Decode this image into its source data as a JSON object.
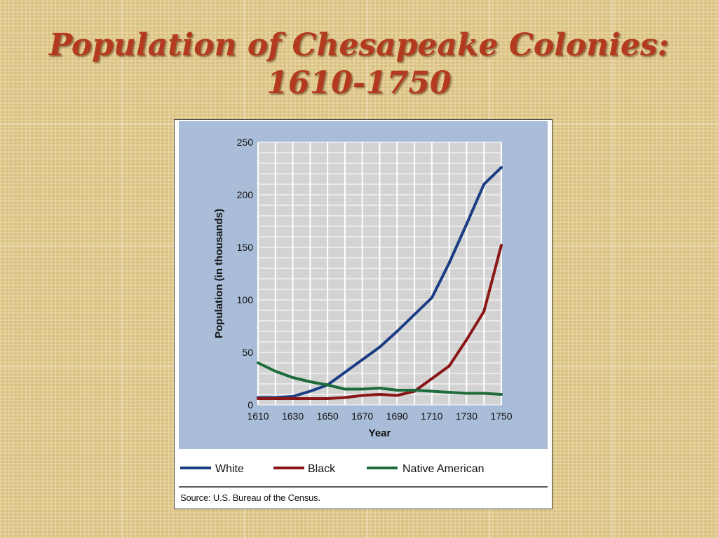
{
  "title": "Population of Chesapeake Colonies: 1610-1750",
  "source": "Source: U.S. Bureau of the Census.",
  "colors": {
    "plot_panel": "#a9bdd8",
    "plot_area": "#d3d3d3",
    "grid": "#ffffff",
    "white_series": "#1a3d84",
    "black_series": "#8a1616",
    "native_series": "#1e6b3c"
  },
  "chart_data": {
    "type": "line",
    "title": "",
    "xlabel": "Year",
    "ylabel": "Population (in thousands)",
    "xlim": [
      1610,
      1750
    ],
    "ylim": [
      0,
      250
    ],
    "x_ticks": [
      "1610",
      "1630",
      "1650",
      "1670",
      "1690",
      "1710",
      "1730",
      "1750"
    ],
    "y_ticks": [
      "0",
      "50",
      "100",
      "150",
      "200",
      "250"
    ],
    "grid": true,
    "legend_position": "bottom",
    "x": [
      1610,
      1620,
      1630,
      1640,
      1650,
      1660,
      1670,
      1680,
      1690,
      1700,
      1710,
      1720,
      1730,
      1740,
      1750
    ],
    "series": [
      {
        "name": "White",
        "values": [
          7,
          7,
          8,
          13,
          19,
          31,
          43,
          55,
          70,
          86,
          102,
          135,
          172,
          210,
          226
        ]
      },
      {
        "name": "Black",
        "values": [
          6,
          6,
          6,
          6,
          6,
          7,
          9,
          10,
          9,
          13,
          25,
          37,
          62,
          89,
          152
        ]
      },
      {
        "name": "Native American",
        "values": [
          40,
          32,
          26,
          22,
          19,
          15,
          15,
          16,
          14,
          14,
          13,
          12,
          11,
          11,
          10
        ]
      }
    ]
  }
}
